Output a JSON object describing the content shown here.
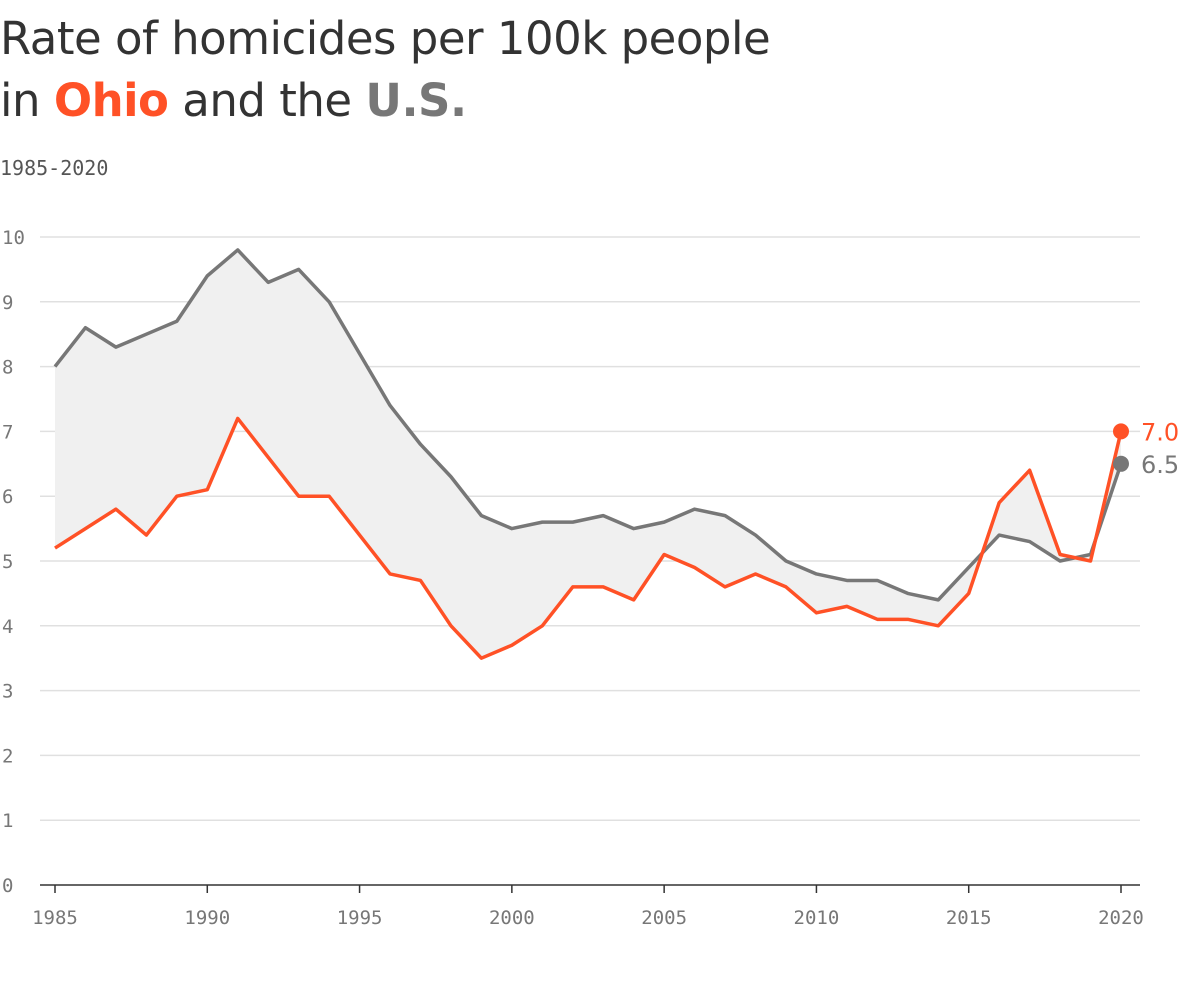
{
  "title": {
    "line1": "Rate of homicides per 100k people",
    "prefix": "in ",
    "ohio": "Ohio",
    "middle": " and the ",
    "us": "U.S."
  },
  "subtitle": "1985-2020",
  "chart_data": {
    "type": "line",
    "title": "Rate of homicides per 100k people in Ohio and the U.S.",
    "subtitle": "1985-2020",
    "xlim": [
      1985,
      2020
    ],
    "ylim": [
      0,
      10
    ],
    "x_ticks": [
      "1985",
      "1990",
      "1995",
      "2000",
      "2005",
      "2010",
      "2015",
      "2020"
    ],
    "y_ticks": [
      "0",
      "1",
      "2",
      "3",
      "4",
      "5",
      "6",
      "7",
      "8",
      "9",
      "10"
    ],
    "grid": true,
    "fill_between_series": true,
    "x": [
      1985,
      1986,
      1987,
      1988,
      1989,
      1990,
      1991,
      1992,
      1993,
      1994,
      1995,
      1996,
      1997,
      1998,
      1999,
      2000,
      2001,
      2002,
      2003,
      2004,
      2005,
      2006,
      2007,
      2008,
      2009,
      2010,
      2011,
      2012,
      2013,
      2014,
      2015,
      2016,
      2017,
      2018,
      2019,
      2020
    ],
    "series": [
      {
        "name": "U.S.",
        "color": "#777777",
        "end_label": "6.5",
        "values": [
          8.0,
          8.6,
          8.3,
          8.5,
          8.7,
          9.4,
          9.8,
          9.3,
          9.5,
          9.0,
          8.2,
          7.4,
          6.8,
          6.3,
          5.7,
          5.5,
          5.6,
          5.6,
          5.7,
          5.5,
          5.6,
          5.8,
          5.7,
          5.4,
          5.0,
          4.8,
          4.7,
          4.7,
          4.5,
          4.4,
          4.9,
          5.4,
          5.3,
          5.0,
          5.1,
          6.5
        ]
      },
      {
        "name": "Ohio",
        "color": "#ff5126",
        "end_label": "7.0",
        "values": [
          5.2,
          5.5,
          5.8,
          5.4,
          6.0,
          6.1,
          7.2,
          6.6,
          6.0,
          6.0,
          5.4,
          4.8,
          4.7,
          4.0,
          3.5,
          3.7,
          4.0,
          4.6,
          4.6,
          4.4,
          5.1,
          4.9,
          4.6,
          4.8,
          4.6,
          4.2,
          4.3,
          4.1,
          4.1,
          4.0,
          4.5,
          5.9,
          6.4,
          5.1,
          5.0,
          7.0
        ]
      }
    ]
  }
}
